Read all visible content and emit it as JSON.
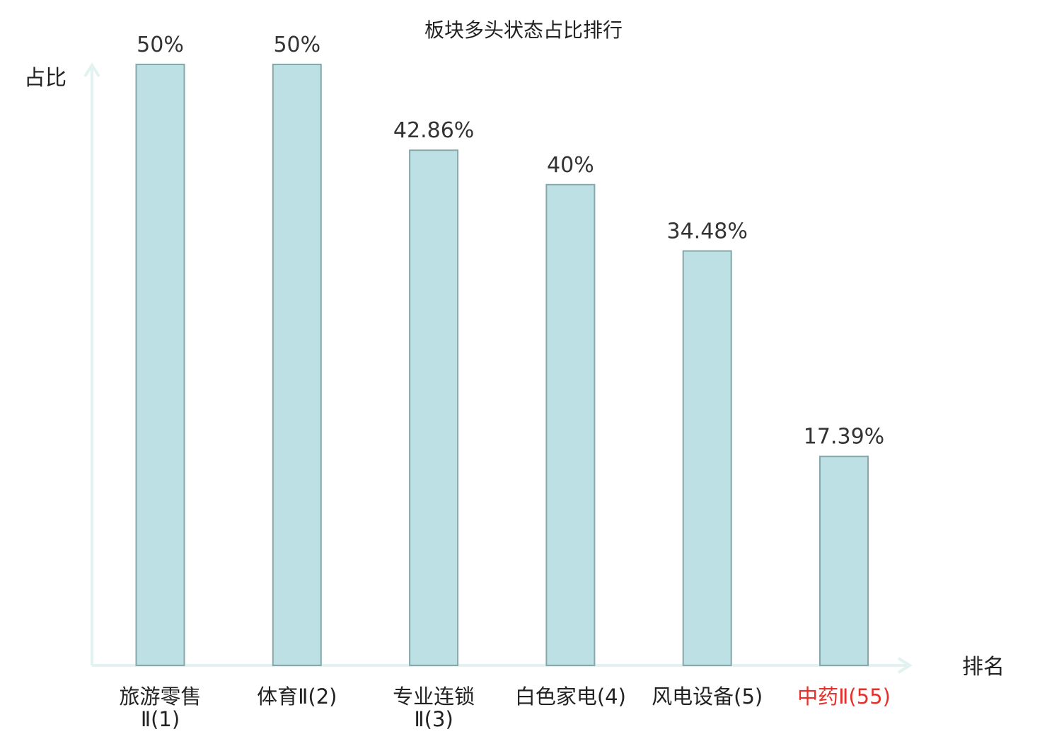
{
  "chart_data": {
    "type": "bar",
    "title": "板块多头状态占比排行",
    "ylabel": "占比",
    "xlabel": "排名",
    "categories": [
      [
        "旅游零售",
        "Ⅱ(1)"
      ],
      [
        "体育Ⅱ(2)"
      ],
      [
        "专业连锁",
        "Ⅱ(3)"
      ],
      [
        "白色家电(4)"
      ],
      [
        "风电设备(5)"
      ],
      [
        "中药Ⅱ(55)"
      ]
    ],
    "values": [
      50,
      50,
      42.86,
      40,
      34.48,
      17.39
    ],
    "value_labels": [
      "50%",
      "50%",
      "42.86%",
      "40%",
      "34.48%",
      "17.39%"
    ],
    "highlight_index": 5,
    "ylim": [
      0,
      50
    ],
    "grid": false,
    "legend": "none",
    "colors": {
      "bar_fill": "#bce0e3",
      "bar_stroke": "#87a8ab",
      "axis": "#e1f2f0",
      "text": "#222222",
      "value_label": "#333333",
      "highlight": "#e8302a"
    }
  }
}
